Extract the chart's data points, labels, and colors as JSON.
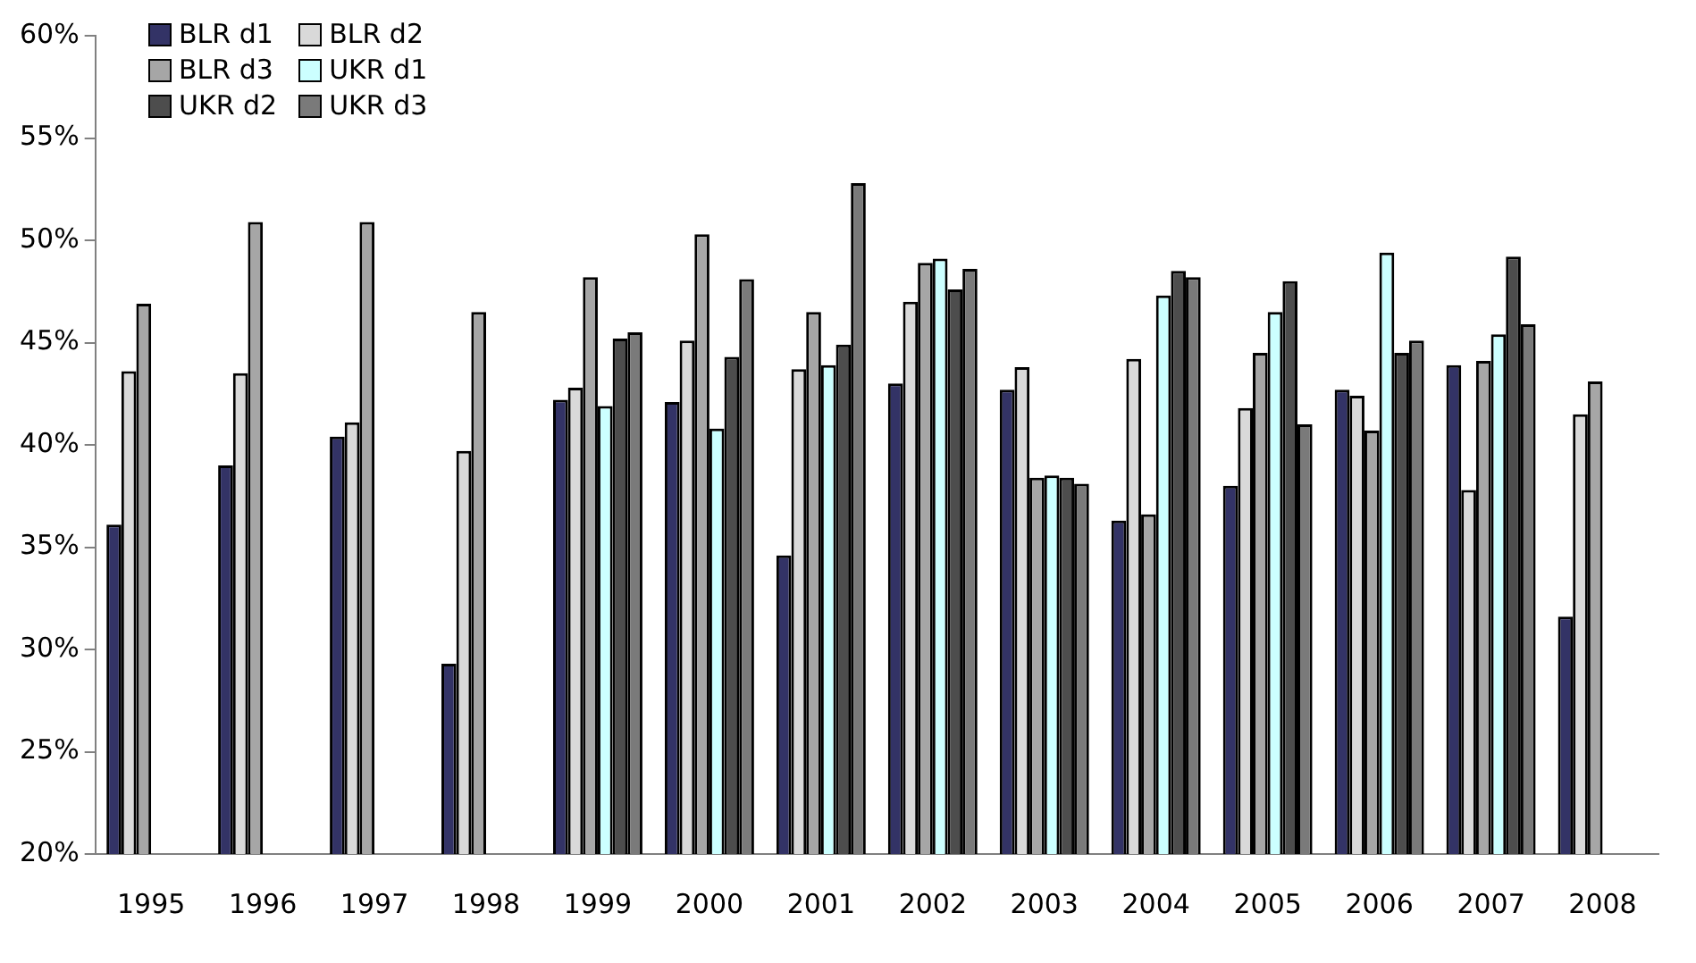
{
  "chart_data": {
    "type": "bar",
    "categories": [
      "1995",
      "1996",
      "1997",
      "1998",
      "1999",
      "2000",
      "2001",
      "2002",
      "2003",
      "2004",
      "2005",
      "2006",
      "2007",
      "2008"
    ],
    "series": [
      {
        "name": "BLR d1",
        "color": "#333366",
        "values": [
          36.1,
          39.0,
          40.4,
          29.3,
          42.2,
          42.1,
          34.6,
          43.0,
          42.7,
          36.3,
          38.0,
          42.7,
          43.9,
          31.6
        ]
      },
      {
        "name": "BLR d2",
        "color": "#d9d9d9",
        "values": [
          43.6,
          43.5,
          41.1,
          39.7,
          42.8,
          45.1,
          43.7,
          47.0,
          43.8,
          44.2,
          41.8,
          42.4,
          37.8,
          41.5
        ]
      },
      {
        "name": "BLR d3",
        "color": "#a6a6a6",
        "values": [
          46.9,
          50.9,
          50.9,
          46.5,
          48.2,
          50.3,
          46.5,
          48.9,
          38.4,
          36.6,
          44.5,
          40.7,
          44.1,
          43.1
        ]
      },
      {
        "name": "UKR d1",
        "color": "#ccffff",
        "values": [
          null,
          null,
          null,
          null,
          41.9,
          40.8,
          43.9,
          49.1,
          38.5,
          47.3,
          46.5,
          49.4,
          45.4,
          null
        ]
      },
      {
        "name": "UKR d2",
        "color": "#4d4d4d",
        "values": [
          null,
          null,
          null,
          null,
          45.2,
          44.3,
          44.9,
          47.6,
          38.4,
          48.5,
          48.0,
          44.5,
          49.2,
          null
        ]
      },
      {
        "name": "UKR d3",
        "color": "#7a7a7a",
        "values": [
          null,
          null,
          null,
          null,
          45.5,
          48.1,
          52.8,
          48.6,
          38.1,
          48.2,
          41.0,
          45.1,
          45.9,
          null
        ]
      }
    ],
    "ylim": [
      20,
      60
    ],
    "yticks": [
      {
        "value": 20,
        "label": "20%"
      },
      {
        "value": 25,
        "label": "25%"
      },
      {
        "value": 30,
        "label": "30%"
      },
      {
        "value": 35,
        "label": "35%"
      },
      {
        "value": 40,
        "label": "40%"
      },
      {
        "value": 45,
        "label": "45%"
      },
      {
        "value": 50,
        "label": "50%"
      },
      {
        "value": 55,
        "label": "55%"
      },
      {
        "value": 60,
        "label": "60%"
      }
    ],
    "grid": false,
    "legend": "top left"
  }
}
